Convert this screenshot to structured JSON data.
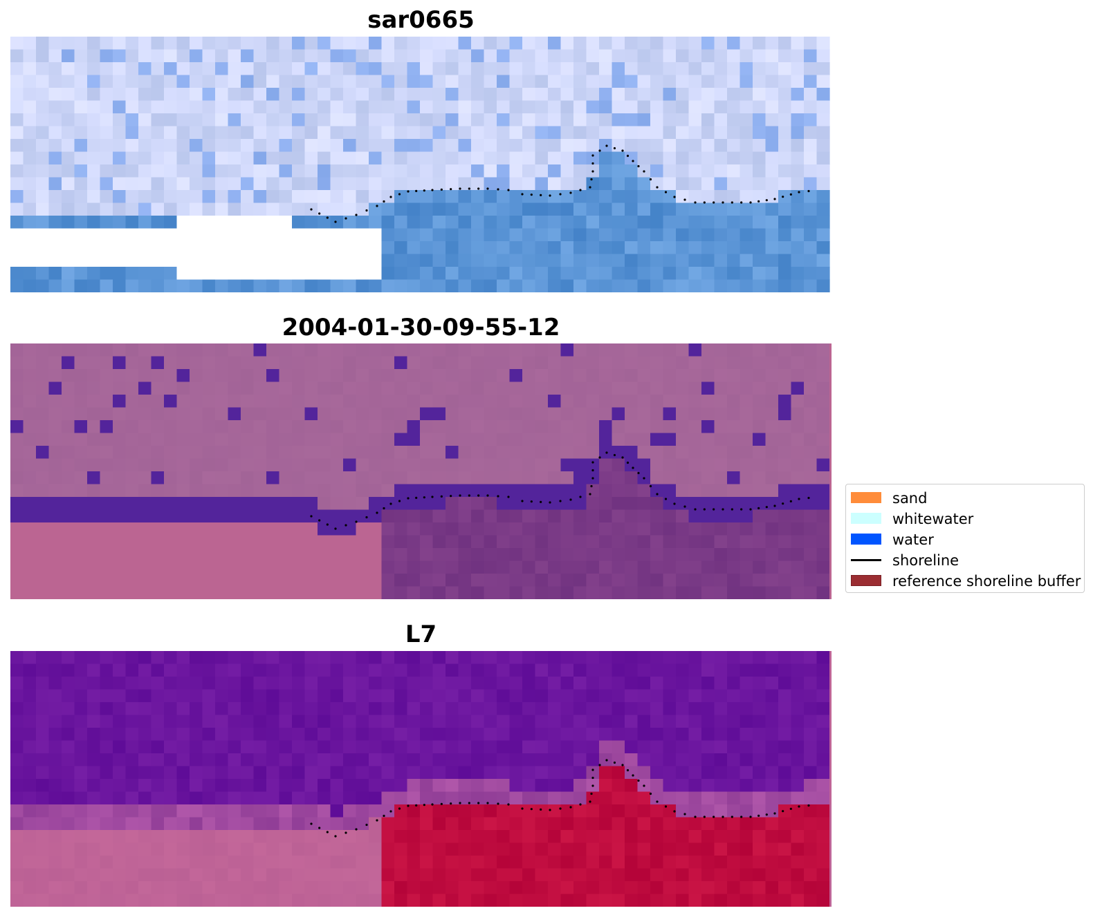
{
  "panels": [
    {
      "title": "sar0665",
      "style": "sar"
    },
    {
      "title": "2004-01-30-09-55-12",
      "style": "classified"
    },
    {
      "title": "L7",
      "style": "l7"
    }
  ],
  "legend": {
    "items": [
      {
        "label": "sand",
        "color": "#ff8c3a",
        "kind": "patch"
      },
      {
        "label": "whitewater",
        "color": "#ccffff",
        "kind": "patch"
      },
      {
        "label": "water",
        "color": "#0055ff",
        "kind": "patch"
      },
      {
        "label": "shoreline",
        "color": "#000000",
        "kind": "line"
      },
      {
        "label": "reference shoreline buffer",
        "color": "#9b2d32",
        "edge": "#7a1f24",
        "kind": "patch"
      }
    ]
  },
  "colors": {
    "sar_land": "#cdd6f8",
    "sar_water": "#5b95d6",
    "class_land": "#a56699",
    "class_water": "#53249b",
    "class_buffer": "#bb6592",
    "class_sea": "#7a3a86",
    "l7_land": "#6a159e",
    "l7_buffer": "#bf6497",
    "l7_sea": "#bf0c3f",
    "shoreline_dot": "#000000"
  }
}
